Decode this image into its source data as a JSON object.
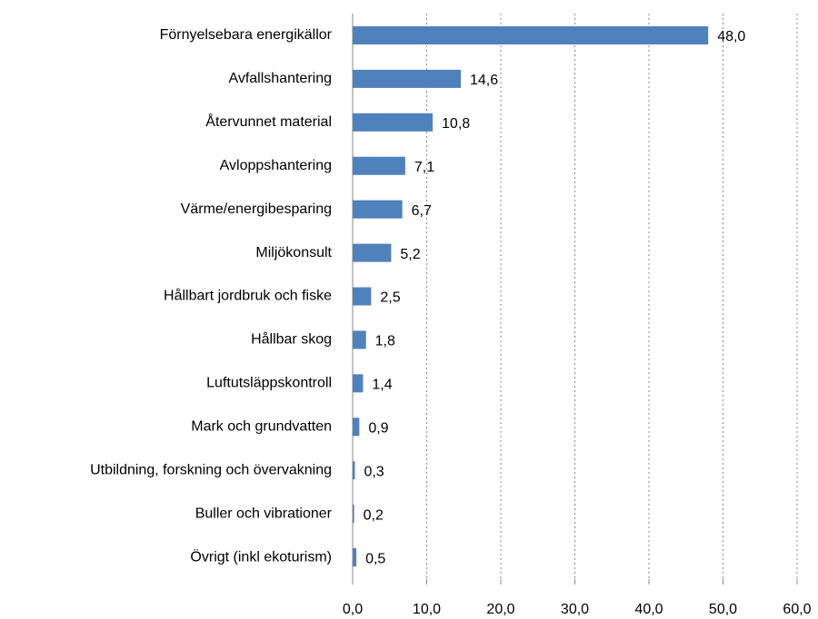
{
  "chart_data": {
    "type": "bar",
    "orientation": "horizontal",
    "categories": [
      "Förnyelsebara energikällor",
      "Avfallshantering",
      "Återvunnet material",
      "Avloppshantering",
      "Värme/energibesparing",
      "Miljökonsult",
      "Hållbart jordbruk och fiske",
      "Hållbar skog",
      "Luftutsläppskontroll",
      "Mark och grundvatten",
      "Utbildning, forskning och övervakning",
      "Buller och vibrationer",
      "Övrigt (inkl ekoturism)"
    ],
    "values": [
      48.0,
      14.6,
      10.8,
      7.1,
      6.7,
      5.2,
      2.5,
      1.8,
      1.4,
      0.9,
      0.3,
      0.2,
      0.5
    ],
    "value_labels": [
      "48,0",
      "14,6",
      "10,8",
      "7,1",
      "6,7",
      "5,2",
      "2,5",
      "1,8",
      "1,4",
      "0,9",
      "0,3",
      "0,2",
      "0,5"
    ],
    "color": "#4f81bd",
    "xlim": [
      0,
      60
    ],
    "xticks": [
      {
        "value": 0,
        "label": "0,0"
      },
      {
        "value": 10,
        "label": "10,0"
      },
      {
        "value": 20,
        "label": "20,0"
      },
      {
        "value": 30,
        "label": "30,0"
      },
      {
        "value": 40,
        "label": "40,0"
      },
      {
        "value": 50,
        "label": "50,0"
      },
      {
        "value": 60,
        "label": "60,0"
      }
    ],
    "grid": true
  }
}
